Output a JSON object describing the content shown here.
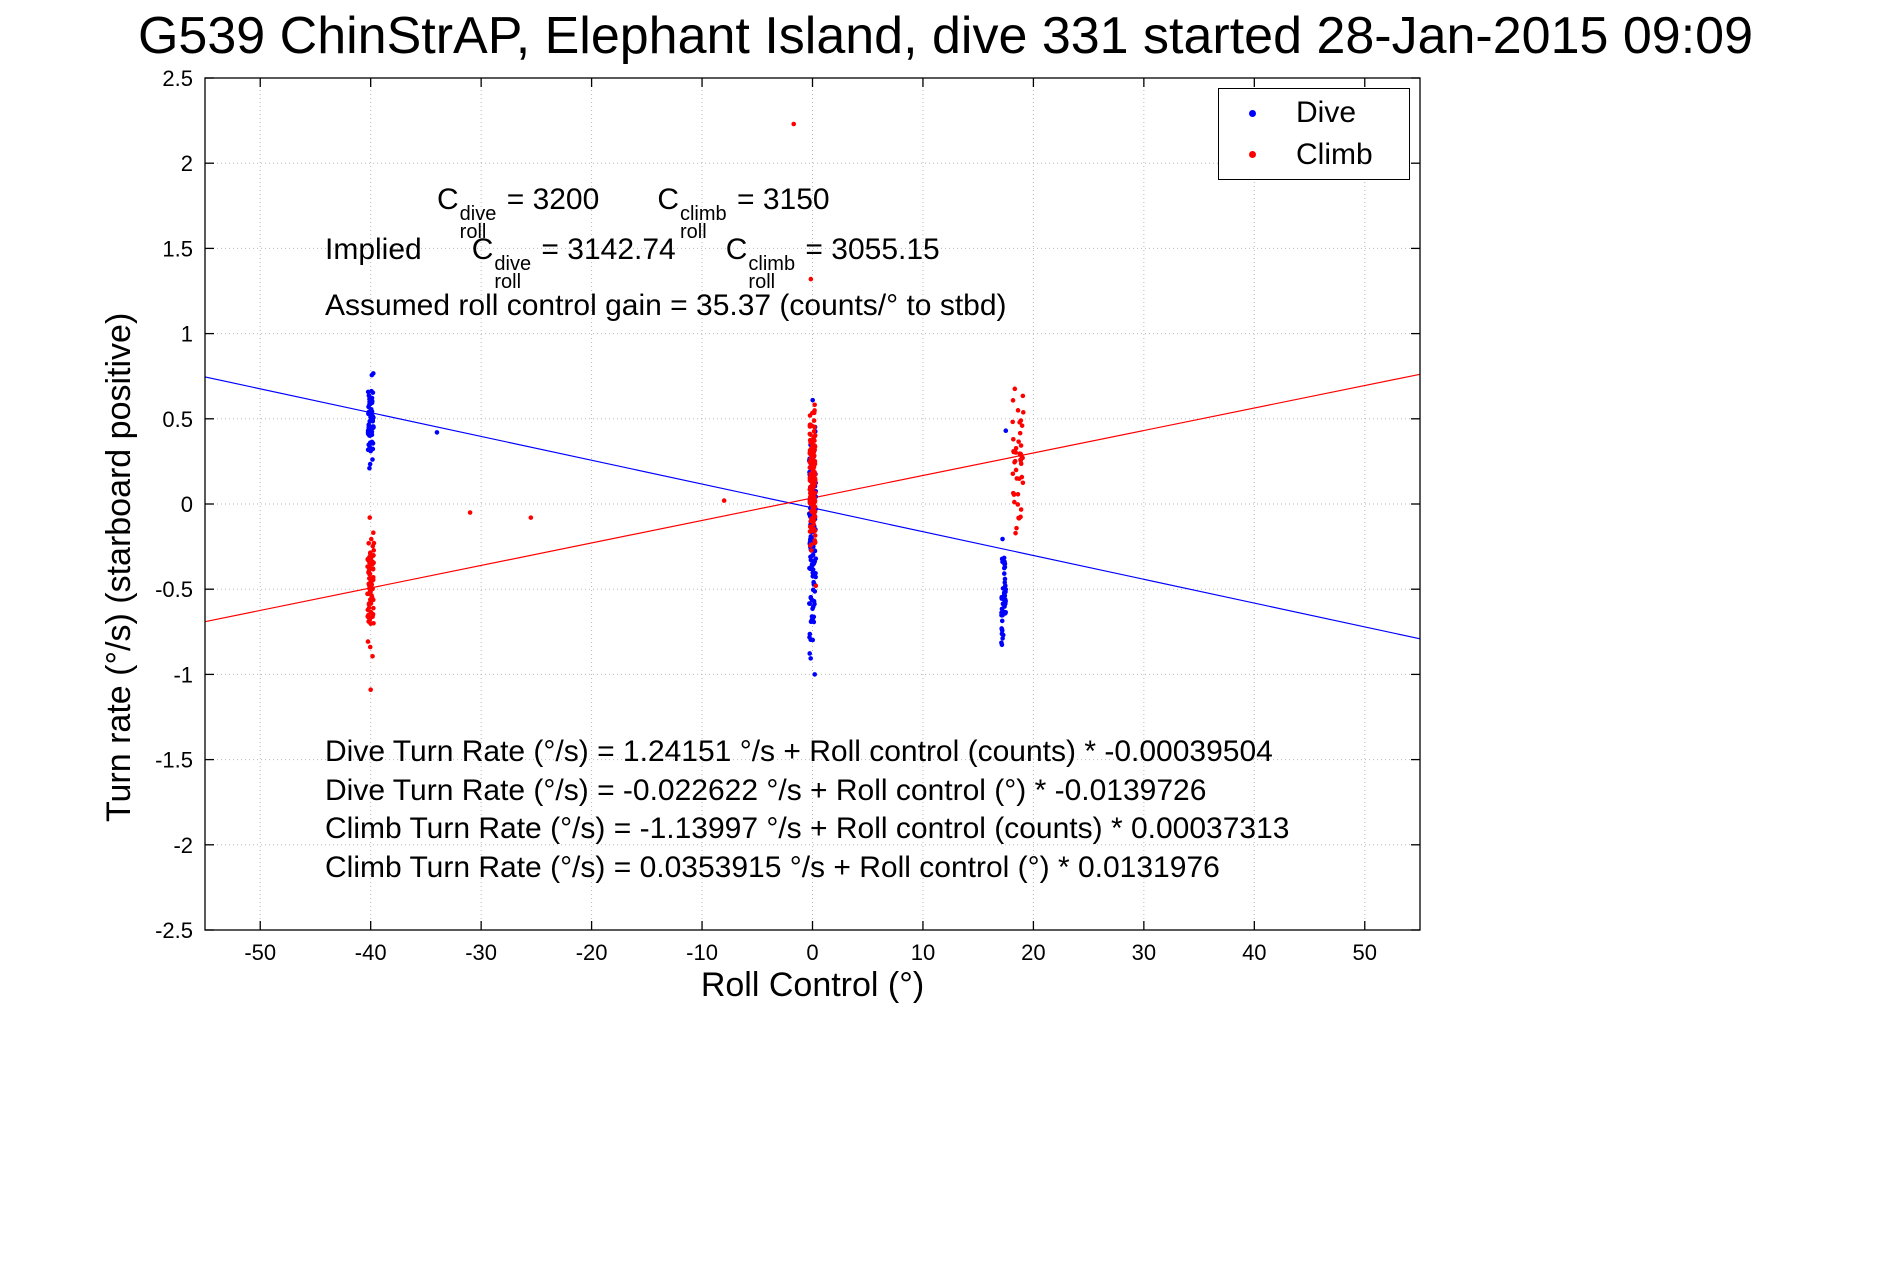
{
  "chart": {
    "title": "G539 ChinStrAP, Elephant Island, dive 331 started 28-Jan-2015 09:09"
  },
  "chart_data": {
    "type": "scatter",
    "title": "G539 ChinStrAP, Elephant Island, dive 331 started 28-Jan-2015 09:09",
    "xlabel": "Roll Control (°)",
    "ylabel": "Turn rate (°/s) (starboard positive)",
    "xlim": [
      -55,
      55
    ],
    "ylim": [
      -2.5,
      2.5
    ],
    "grid": true,
    "xticks": {
      "values": [
        -50,
        -40,
        -30,
        -20,
        -10,
        0,
        10,
        20,
        30,
        40,
        50
      ],
      "labels": [
        "-50",
        "-40",
        "-30",
        "-20",
        "-10",
        "0",
        "10",
        "20",
        "30",
        "40",
        "50"
      ]
    },
    "yticks": {
      "values": [
        -2.5,
        -2,
        -1.5,
        -1,
        -0.5,
        0,
        0.5,
        1,
        1.5,
        2,
        2.5
      ],
      "labels": [
        "-2.5",
        "-2",
        "-1.5",
        "-1",
        "-0.5",
        "0",
        "0.5",
        "1",
        "1.5",
        "2",
        "2.5"
      ]
    },
    "legend": {
      "position": "top-right",
      "entries": [
        {
          "label": "Dive",
          "color": "#0000ff"
        },
        {
          "label": "Climb",
          "color": "#ff0000"
        }
      ]
    },
    "series": [
      {
        "name": "Dive",
        "color": "#0000ff",
        "marker": "dot",
        "clusters": [
          {
            "x_center": -40,
            "x_jitter": 0.25,
            "y_mean": 0.52,
            "y_sd": 0.13,
            "y_min": 0.18,
            "y_max": 0.87,
            "n": 70
          },
          {
            "x_center": 0,
            "x_jitter": 0.3,
            "y_mean": -0.15,
            "y_sd": 0.35,
            "y_min": -1.02,
            "y_max": 0.62,
            "n": 130
          },
          {
            "x_center": 17.3,
            "x_jitter": 0.2,
            "y_mean": -0.55,
            "y_sd": 0.18,
            "y_min": -0.93,
            "y_max": -0.18,
            "n": 55
          }
        ],
        "outliers": [
          [
            -34,
            0.42
          ],
          [
            17.5,
            0.43
          ],
          [
            0.2,
            -1.0
          ]
        ],
        "fit": {
          "slope": -0.0139726,
          "intercept": -0.022622
        }
      },
      {
        "name": "Climb",
        "color": "#ff0000",
        "marker": "dot",
        "clusters": [
          {
            "x_center": -40,
            "x_jitter": 0.3,
            "y_mean": -0.5,
            "y_sd": 0.17,
            "y_min": -0.93,
            "y_max": 0.05,
            "n": 75
          },
          {
            "x_center": 0,
            "x_jitter": 0.25,
            "y_mean": 0.15,
            "y_sd": 0.22,
            "y_min": -0.33,
            "y_max": 0.63,
            "n": 150
          },
          {
            "x_center": 18.6,
            "x_jitter": 0.5,
            "y_mean": 0.25,
            "y_sd": 0.25,
            "y_min": -0.25,
            "y_max": 0.7,
            "n": 45
          }
        ],
        "outliers": [
          [
            -1.7,
            2.23
          ],
          [
            -0.15,
            1.32
          ],
          [
            -31,
            -0.05
          ],
          [
            -25.5,
            -0.08
          ],
          [
            -8,
            0.02
          ],
          [
            -40,
            -1.09
          ],
          [
            0.3,
            -0.48
          ]
        ],
        "fit": {
          "slope": 0.0131976,
          "intercept": 0.0353915
        }
      }
    ],
    "annotations": {
      "c_line1": {
        "prefix": "",
        "terms": [
          {
            "base": "C",
            "sup": "dive",
            "sub": "roll",
            "value": " = 3200"
          },
          {
            "base": "C",
            "sup": "climb",
            "sub": "roll",
            "value": " = 3150"
          }
        ]
      },
      "c_line2": {
        "prefix": "Implied ",
        "terms": [
          {
            "base": "C",
            "sup": "dive",
            "sub": "roll",
            "value": " = 3142.74"
          },
          {
            "base": "C",
            "sup": "climb",
            "sub": "roll",
            "value": " = 3055.15"
          }
        ]
      },
      "gain_line": "Assumed roll control gain = 35.37 (counts/° to stbd)",
      "equations": [
        "Dive Turn Rate (°/s) = 1.24151 °/s + Roll control (counts) * -0.00039504",
        "Dive Turn Rate (°/s) = -0.022622 °/s + Roll control (°) * -0.0139726",
        "Climb Turn Rate (°/s) = -1.13997 °/s + Roll control (counts) * 0.00037313",
        "Climb Turn Rate (°/s) = 0.0353915 °/s + Roll control (°) * 0.0131976"
      ]
    }
  }
}
